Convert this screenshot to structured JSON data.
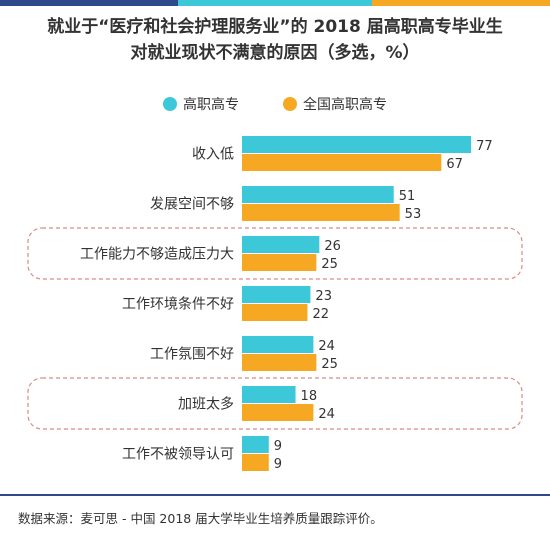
{
  "colors": {
    "series1": "#3CC8D8",
    "series2": "#F7A823",
    "top_bar": [
      "#2E4A8C",
      "#3CC8D8",
      "#F7A823"
    ],
    "bottom_line": "#2E4A8C",
    "highlight_border": "#D98A8A"
  },
  "chart_data": {
    "type": "bar",
    "orientation": "horizontal",
    "title_line1": "就业于“医疗和社会护理服务业”的 2018 届高职高专毕业生",
    "title_line2": "对就业现状不满意的原因（多选，%）",
    "categories": [
      "收入低",
      "发展空间不够",
      "工作能力不够造成压力大",
      "工作环境条件不好",
      "工作氛围不好",
      "加班太多",
      "工作不被领导认可"
    ],
    "highlighted": [
      "工作能力不够造成压力大",
      "加班太多"
    ],
    "series": [
      {
        "name": "高职高专",
        "values": [
          77,
          51,
          26,
          23,
          24,
          18,
          9
        ]
      },
      {
        "name": "全国高职高专",
        "values": [
          67,
          53,
          25,
          22,
          25,
          24,
          9
        ]
      }
    ],
    "xlim": [
      0,
      80
    ],
    "grid": false,
    "legend_position": "top-center"
  },
  "source": "数据来源：麦可思 - 中国 2018 届大学毕业生培养质量跟踪评价。"
}
